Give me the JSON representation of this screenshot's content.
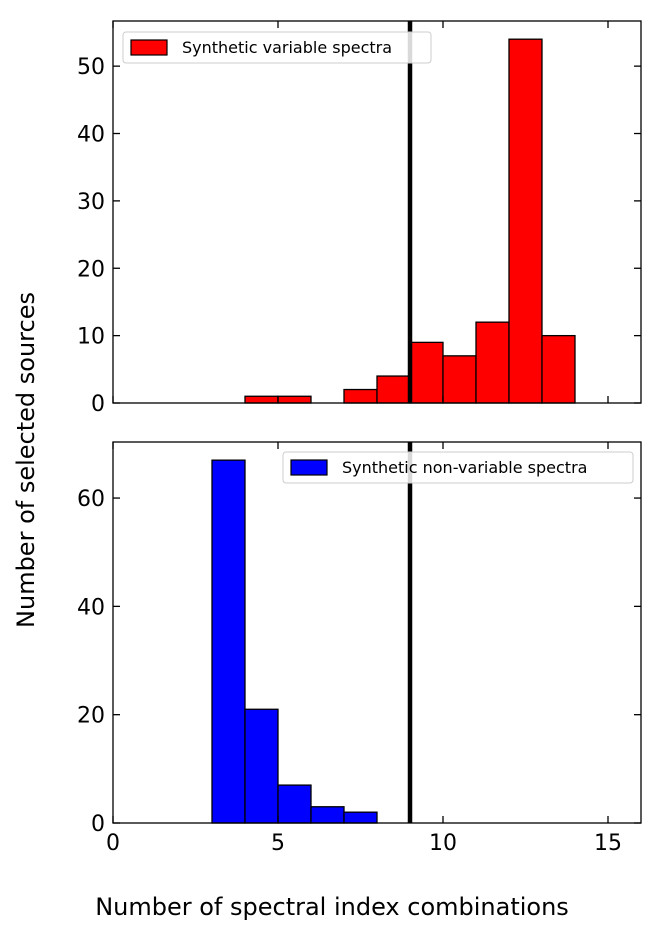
{
  "figure": {
    "ylabel": "Number of selected sources",
    "xlabel": "Number of spectral index combinations"
  },
  "chart_data": [
    {
      "type": "bar",
      "histogram": true,
      "series": [
        {
          "name": "Synthetic variable spectra",
          "color": "#ff0000",
          "bins": [
            {
              "x0": 4,
              "x1": 5,
              "value": 1
            },
            {
              "x0": 5,
              "x1": 6,
              "value": 1
            },
            {
              "x0": 7,
              "x1": 8,
              "value": 2
            },
            {
              "x0": 8,
              "x1": 9,
              "value": 4
            },
            {
              "x0": 9,
              "x1": 10,
              "value": 9
            },
            {
              "x0": 10,
              "x1": 11,
              "value": 7
            },
            {
              "x0": 11,
              "x1": 12,
              "value": 12
            },
            {
              "x0": 12,
              "x1": 13,
              "value": 54
            },
            {
              "x0": 13,
              "x1": 14,
              "value": 10
            }
          ]
        }
      ],
      "xlim": [
        0,
        16
      ],
      "ylim": [
        0,
        56.7
      ],
      "yticks": [
        0,
        10,
        20,
        30,
        40,
        50
      ],
      "xticks": [
        0,
        5,
        10,
        15
      ],
      "show_xtick_labels": false,
      "vline_x": 9,
      "legend_position": "top-left",
      "grid": false
    },
    {
      "type": "bar",
      "histogram": true,
      "series": [
        {
          "name": "Synthetic non-variable spectra",
          "color": "#0000ff",
          "bins": [
            {
              "x0": 3,
              "x1": 4,
              "value": 67
            },
            {
              "x0": 4,
              "x1": 5,
              "value": 21
            },
            {
              "x0": 5,
              "x1": 6,
              "value": 7
            },
            {
              "x0": 6,
              "x1": 7,
              "value": 3
            },
            {
              "x0": 7,
              "x1": 8,
              "value": 2
            }
          ]
        }
      ],
      "xlim": [
        0,
        16
      ],
      "ylim": [
        0,
        70.35
      ],
      "yticks": [
        0,
        20,
        40,
        60
      ],
      "xticks": [
        0,
        5,
        10,
        15
      ],
      "show_xtick_labels": true,
      "vline_x": 9,
      "legend_position": "top-right",
      "grid": false
    }
  ]
}
